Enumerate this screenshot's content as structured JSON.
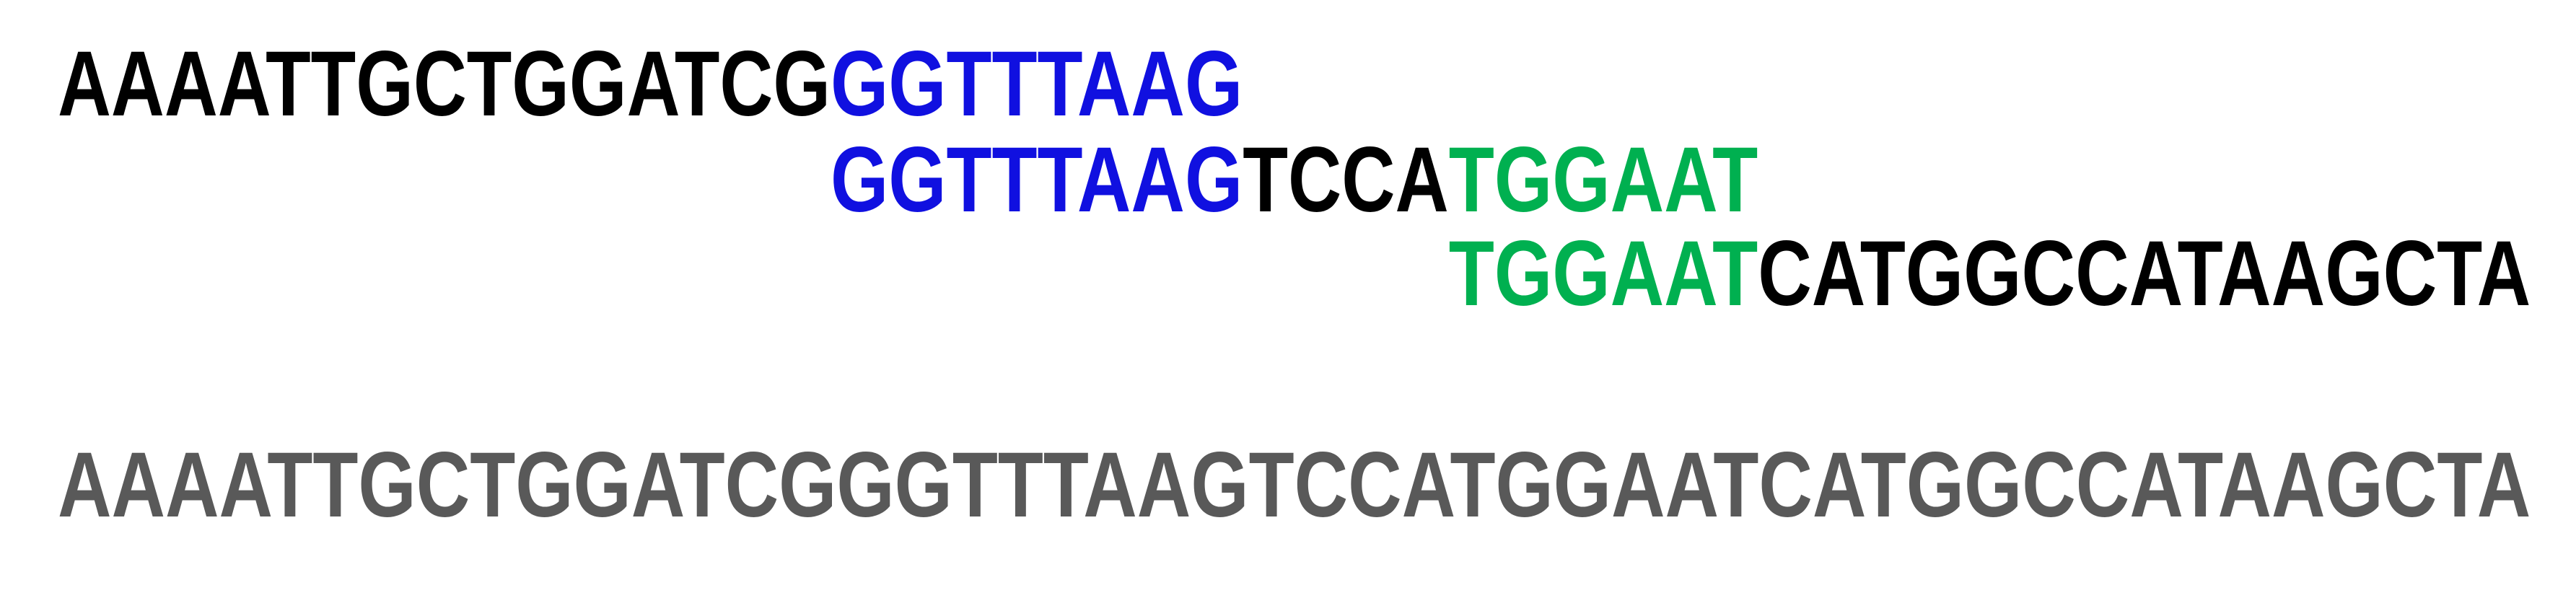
{
  "reads": [
    {
      "segments": [
        {
          "text": "AAAATTGCTGGATCG",
          "color": "#000000"
        },
        {
          "text": "GGTTTAAG",
          "color": "#1010e0"
        }
      ]
    },
    {
      "segments": [
        {
          "text": "GGTTTAAG",
          "color": "#1010e0"
        },
        {
          "text": "TCCA",
          "color": "#000000"
        },
        {
          "text": "TGGAAT",
          "color": "#00b050"
        }
      ]
    },
    {
      "segments": [
        {
          "text": "TGGAAT",
          "color": "#00b050"
        },
        {
          "text": "CATGGCCATAAGCTA",
          "color": "#000000"
        }
      ]
    }
  ],
  "assembled": {
    "text": "AAAATTGCTGGATCGGGTTTAAGTCCATGGAATCATGGCCATAAGCTA",
    "color": "#595959"
  }
}
